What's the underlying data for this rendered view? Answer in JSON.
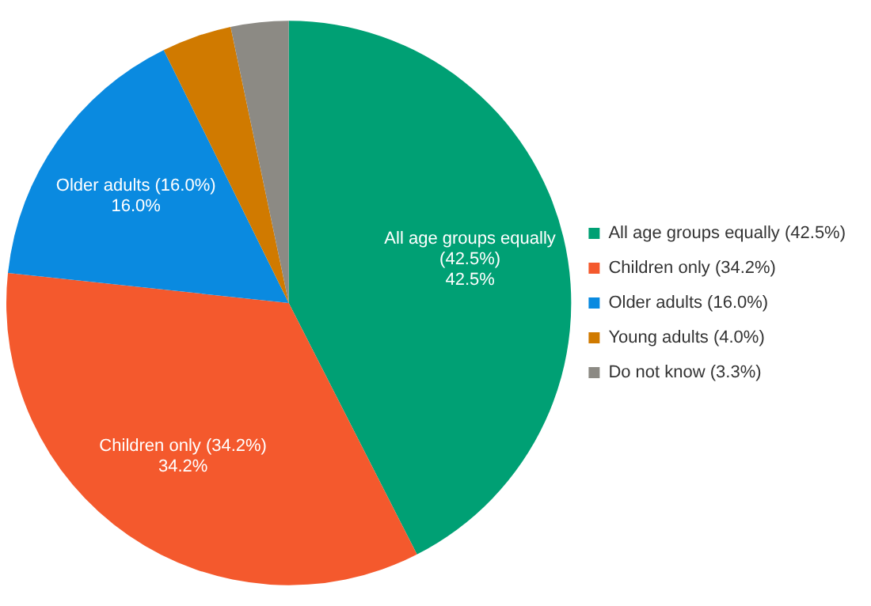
{
  "chart_data": {
    "type": "pie",
    "categories": [
      "All age groups equally (42.5%)",
      "Children only (34.2%)",
      "Older adults (16.0%)",
      "Young adults (4.0%)",
      "Do not know (3.3%)"
    ],
    "values": [
      42.5,
      34.2,
      16.0,
      4.0,
      3.3
    ],
    "colors": [
      "#00a074",
      "#f4592d",
      "#0a8ae0",
      "#d07a00",
      "#8c8a84"
    ],
    "value_labels": [
      "42.5%",
      "34.2%",
      "16.0%",
      null,
      null
    ],
    "legend": "right"
  }
}
